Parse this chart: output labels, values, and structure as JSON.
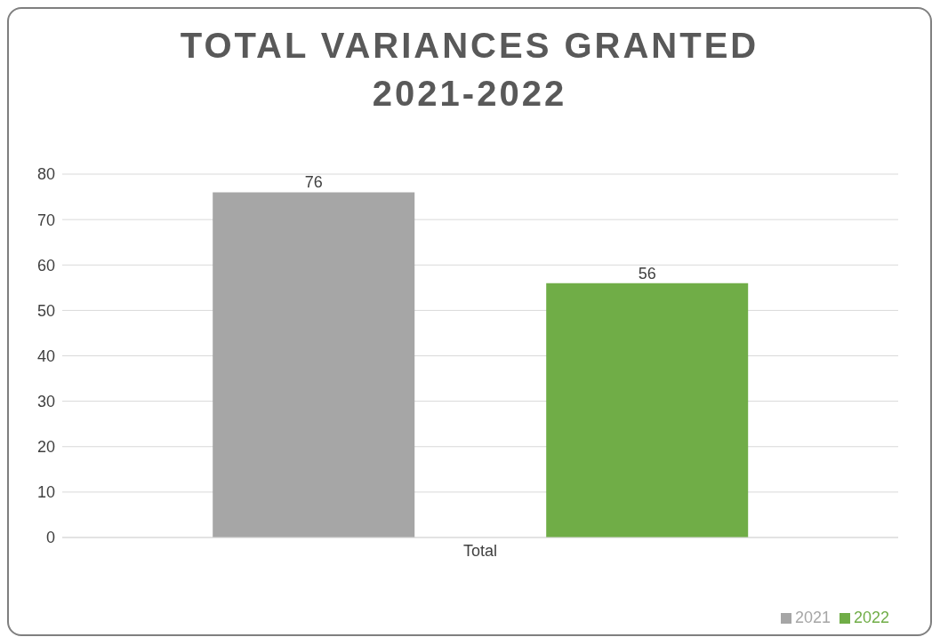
{
  "chart_data": {
    "type": "bar",
    "title": "TOTAL VARIANCES GRANTED 2021-2022",
    "categories": [
      "Total"
    ],
    "series": [
      {
        "name": "2021",
        "color": "#a6a6a6",
        "values": [
          76
        ]
      },
      {
        "name": "2022",
        "color": "#70ad47",
        "values": [
          56
        ]
      }
    ],
    "ylim": [
      0,
      80
    ],
    "yticks": [
      0,
      10,
      20,
      30,
      40,
      50,
      60,
      70,
      80
    ],
    "grid": "y",
    "legend": "bottom right",
    "data_labels": true
  }
}
